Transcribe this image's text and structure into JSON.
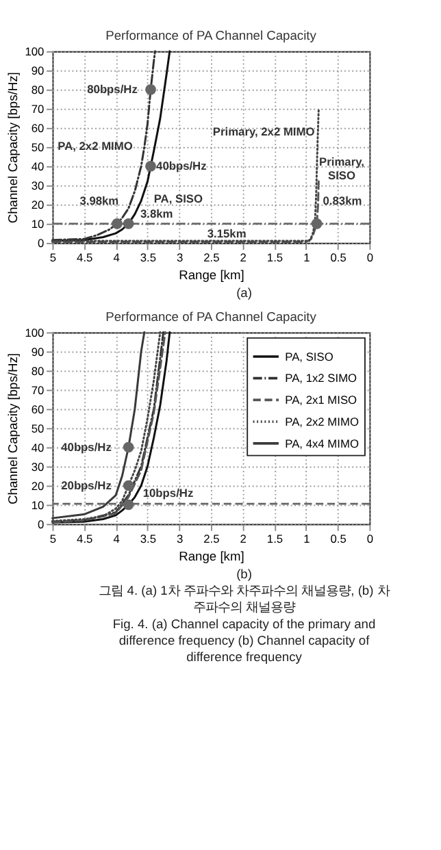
{
  "chart_data": [
    {
      "type": "line",
      "title": "Performance of PA Channel Capacity",
      "xlabel": "Range [km]",
      "ylabel": "Channel Capacity [bps/Hz]",
      "xlim": [
        5,
        0
      ],
      "xticks": [
        5,
        4.5,
        4,
        3.5,
        3,
        2.5,
        2,
        1.5,
        1,
        0.5,
        0
      ],
      "ylim": [
        0,
        100
      ],
      "yticks": [
        0,
        10,
        20,
        30,
        40,
        50,
        60,
        70,
        80,
        90,
        100
      ],
      "grid": true,
      "legend": false,
      "marker": "none",
      "series": [
        {
          "color": "#111111",
          "line_style": "solid",
          "x": [
            5,
            4.5,
            4.2,
            4.0,
            3.9,
            3.8,
            3.7,
            3.6,
            3.5,
            3.45,
            3.4,
            3.3,
            3.2,
            3.15
          ],
          "values": [
            1,
            1.5,
            3,
            5,
            7,
            10,
            15,
            22,
            32,
            40,
            48,
            65,
            88,
            100
          ]
        },
        {
          "color": "#333333",
          "line_style": "dashdot",
          "x": [
            5,
            4.5,
            4.3,
            4.1,
            3.98,
            3.9,
            3.8,
            3.7,
            3.6,
            3.55,
            3.5,
            3.45,
            3.4,
            3.38
          ],
          "values": [
            1.5,
            2,
            4,
            7,
            10,
            13,
            18,
            27,
            40,
            50,
            62,
            80,
            95,
            100
          ]
        },
        {
          "color": "#555555",
          "line_style": "dashed",
          "x": [
            5,
            1.0,
            0.92,
            0.88,
            0.85,
            0.83,
            0.81,
            0.8
          ],
          "values": [
            0.5,
            0.5,
            2,
            5,
            8,
            10,
            20,
            33
          ]
        },
        {
          "color": "#444444",
          "line_style": "dotted",
          "x": [
            5,
            0.95,
            0.9,
            0.86,
            0.84,
            0.82,
            0.8
          ],
          "values": [
            1,
            1,
            4,
            10,
            25,
            50,
            70
          ]
        },
        {
          "type": "scatter",
          "marker": "circle",
          "color": "#666666",
          "x": [
            3.45,
            3.45,
            3.98,
            3.8,
            0.83
          ],
          "values": [
            80,
            40,
            10,
            10,
            10
          ]
        }
      ],
      "ref_lines": [
        {
          "axis": "y",
          "value": 10,
          "color": "#666666",
          "line_style": "dashdot"
        }
      ],
      "annotations": [
        "(a)",
        {
          "text": "80bps/Hz",
          "x": 3.45,
          "y": 80
        },
        {
          "text": "40bps/Hz",
          "x": 3.45,
          "y": 40
        },
        {
          "text": "PA, 2x2 MIMO",
          "x": 3.6,
          "y": 40
        },
        {
          "text": "PA, SISO",
          "x": 3.7,
          "y": 15
        },
        {
          "text": "3.98km",
          "x": 3.98,
          "y": 10
        },
        {
          "text": "3.8km",
          "x": 3.8,
          "y": 10
        },
        {
          "text": "3.15km",
          "x": 2.25,
          "y": 10
        },
        {
          "text": "Primary, 2x2 MIMO",
          "x": 0.82,
          "y": 50
        },
        {
          "text": "Primary,\nSISO",
          "x": 0.8,
          "y": 33
        },
        {
          "text": "0.83km",
          "x": 0.83,
          "y": 10
        }
      ]
    },
    {
      "type": "line",
      "title": "Performance of PA Channel Capacity",
      "xlabel": "Range [km]",
      "ylabel": "Channel Capacity [bps/Hz]",
      "xlim": [
        5,
        0
      ],
      "xticks": [
        5,
        4.5,
        4,
        3.5,
        3,
        2.5,
        2,
        1.5,
        1,
        0.5,
        0
      ],
      "ylim": [
        0,
        100
      ],
      "yticks": [
        0,
        10,
        20,
        30,
        40,
        50,
        60,
        70,
        80,
        90,
        100
      ],
      "grid": true,
      "legend": "top right",
      "marker": "none",
      "series": [
        {
          "name": "PA, SISO",
          "color": "#111111",
          "line_style": "solid",
          "x": [
            5,
            4.5,
            4.2,
            4.0,
            3.9,
            3.8,
            3.7,
            3.6,
            3.5,
            3.4,
            3.3,
            3.2,
            3.15
          ],
          "values": [
            0.8,
            1.2,
            2.5,
            4.5,
            7,
            10,
            14,
            20,
            30,
            45,
            62,
            85,
            100
          ]
        },
        {
          "name": "PA, 1x2 SIMO",
          "color": "#333333",
          "line_style": "dashdot",
          "x": [
            5,
            4.5,
            4.0,
            3.8,
            3.6,
            3.4,
            3.25
          ],
          "values": [
            1.2,
            2,
            6,
            15,
            30,
            60,
            100
          ]
        },
        {
          "name": "PA, 2x1 MISO",
          "color": "#555555",
          "line_style": "dashed",
          "x": [
            5,
            4.5,
            4.0,
            3.8,
            3.6,
            3.4,
            3.22
          ],
          "values": [
            1,
            1.8,
            5.5,
            14,
            28,
            58,
            100
          ]
        },
        {
          "name": "PA, 2x2 MIMO",
          "color": "#444444",
          "line_style": "dotted",
          "x": [
            5,
            4.5,
            4.2,
            4.0,
            3.9,
            3.8,
            3.7,
            3.6,
            3.5,
            3.4,
            3.3
          ],
          "values": [
            1.5,
            2.5,
            4,
            8,
            12,
            20,
            28,
            38,
            55,
            75,
            100
          ]
        },
        {
          "name": "PA, 4x4 MIMO",
          "color": "#3a3a3a",
          "line_style": "solid",
          "x": [
            5,
            4.5,
            4.2,
            4.0,
            3.9,
            3.8,
            3.7,
            3.65,
            3.6,
            3.55
          ],
          "values": [
            3,
            5,
            9,
            15,
            25,
            40,
            60,
            75,
            90,
            100
          ]
        },
        {
          "type": "scatter",
          "marker": "circle",
          "color": "#666666",
          "x": [
            3.8,
            3.8,
            3.8
          ],
          "values": [
            40,
            20,
            10
          ]
        }
      ],
      "ref_lines": [
        {
          "axis": "y",
          "value": 10.5,
          "color": "#666666",
          "line_style": "dashed"
        }
      ],
      "annotations": [
        "(b)",
        "그림 4. (a) 1차 주파수와 차주파수의 채널용량, (b) 차 주파수의 채널용량",
        "Fig. 4. (a) Channel capacity of the primary and difference frequency (b) Channel capacity of difference frequency",
        {
          "text": "40bps/Hz",
          "x": 3.8,
          "y": 40
        },
        {
          "text": "20bps/Hz",
          "x": 3.8,
          "y": 20
        },
        {
          "text": "10bps/Hz",
          "x": 3.8,
          "y": 10
        }
      ]
    }
  ]
}
